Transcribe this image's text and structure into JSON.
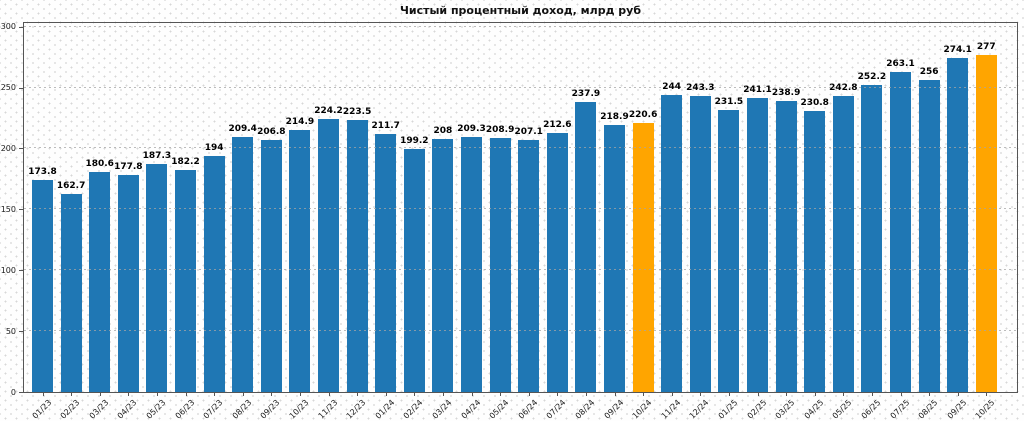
{
  "chart_data": {
    "type": "bar",
    "title": "Чистый процентный доход, млрд руб",
    "categories": [
      "01/23",
      "02/23",
      "03/23",
      "04/23",
      "05/23",
      "06/23",
      "07/23",
      "08/23",
      "09/23",
      "10/23",
      "11/23",
      "12/23",
      "01/24",
      "02/24",
      "03/24",
      "04/24",
      "05/24",
      "06/24",
      "07/24",
      "08/24",
      "09/24",
      "10/24",
      "11/24",
      "12/24",
      "01/25",
      "02/25",
      "03/25",
      "04/25",
      "05/25",
      "06/25",
      "07/25",
      "08/25",
      "09/25",
      "10/25"
    ],
    "values": [
      173.8,
      162.7,
      180.6,
      177.8,
      187.3,
      182.2,
      194,
      209.4,
      206.8,
      214.9,
      224.2,
      223.5,
      211.7,
      199.2,
      208,
      209.3,
      208.9,
      207.1,
      212.6,
      237.9,
      218.9,
      220.6,
      244,
      243.3,
      231.5,
      241.1,
      238.9,
      230.8,
      242.8,
      252.2,
      263.1,
      256,
      274.1,
      277
    ],
    "highlight_indices": [
      21,
      33
    ],
    "yticks": [
      0,
      50,
      100,
      150,
      200,
      250,
      300
    ],
    "ylim": [
      0,
      303
    ],
    "grid": true,
    "legend": null,
    "xlabel": "",
    "ylabel": "",
    "colors": {
      "bar": "#1f77b4",
      "highlight": "#ffa500",
      "grid": "#a5a5a5",
      "spine": "#555555",
      "value_label": "#000000",
      "tick_label": "#1a1a1a"
    }
  }
}
